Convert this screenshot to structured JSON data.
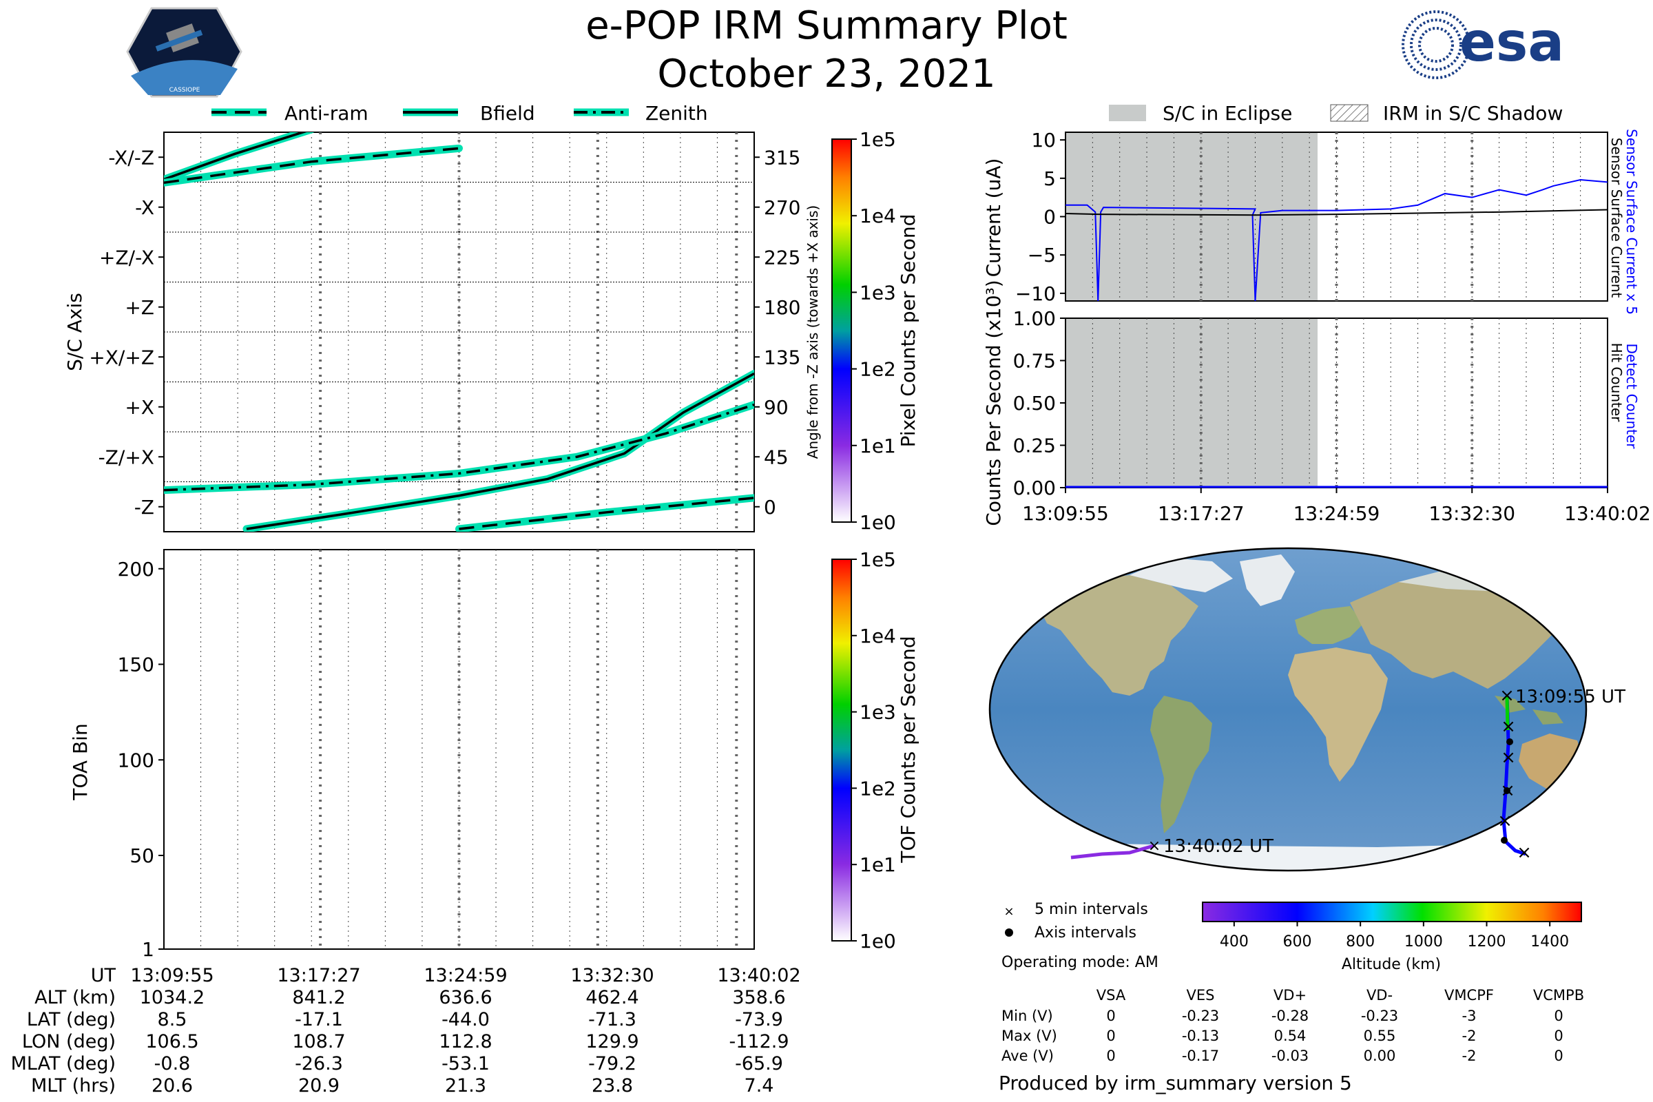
{
  "header": {
    "title": "e-POP IRM Summary Plot",
    "date": "October 23, 2021",
    "mission_logo_text": "CASSIOPE",
    "agency_logo_text": "esa"
  },
  "colors": {
    "teal": "#00e0b0",
    "eclipse_fill": "#c8cbca",
    "blue_series": "#0000ff",
    "black_series": "#000000"
  },
  "top_legend": [
    {
      "label": "Anti-ram",
      "style": "dashed"
    },
    {
      "label": "Bfield",
      "style": "solid"
    },
    {
      "label": "Zenith",
      "style": "dashdot"
    }
  ],
  "right_legend": [
    {
      "label": "S/C in Eclipse",
      "style": "gray-fill"
    },
    {
      "label": "IRM in S/C Shadow",
      "style": "hatch"
    }
  ],
  "time_ticks": [
    "13:09:55",
    "13:17:27",
    "13:24:59",
    "13:32:30",
    "13:40:02"
  ],
  "chart_data": [
    {
      "id": "sc_axis",
      "type": "line",
      "ylabel": "S/C Axis",
      "ylabel_right": "Angle from -Z axis (towards +X axis)",
      "y_tick_labels": [
        "-Z",
        "-Z/+X",
        "+X",
        "+X/+Z",
        "+Z",
        "+Z/-X",
        "-X",
        "-X/-Z"
      ],
      "y_tick_values": [
        0,
        45,
        90,
        135,
        180,
        225,
        270,
        315
      ],
      "ylim": [
        -22.5,
        337.5
      ],
      "x": [
        "13:09:55",
        "13:17:27",
        "13:24:59",
        "13:32:30",
        "13:40:02"
      ],
      "series": [
        {
          "name": "Bfield",
          "style": "solid",
          "segments": [
            [
              [
                0,
                295
              ],
              [
                0.12,
                318
              ],
              [
                0.25,
                340
              ]
            ],
            [
              [
                0.14,
                -20
              ],
              [
                0.3,
                -7
              ],
              [
                0.5,
                10
              ],
              [
                0.65,
                25
              ],
              [
                0.78,
                48
              ],
              [
                0.88,
                85
              ],
              [
                1.0,
                120
              ]
            ]
          ]
        },
        {
          "name": "Anti-ram",
          "style": "dashed",
          "segments": [
            [
              [
                0,
                292
              ],
              [
                0.25,
                311
              ],
              [
                0.5,
                323
              ]
            ],
            [
              [
                0.5,
                -20
              ],
              [
                0.75,
                -5
              ],
              [
                1.0,
                8
              ]
            ]
          ]
        },
        {
          "name": "Zenith",
          "style": "dashdot",
          "segments": [
            [
              [
                0,
                15
              ],
              [
                0.25,
                20
              ],
              [
                0.5,
                30
              ],
              [
                0.7,
                45
              ],
              [
                0.85,
                66
              ],
              [
                1.0,
                92
              ]
            ]
          ]
        }
      ],
      "colorbar": {
        "label": "Pixel Counts per Second",
        "ticks": [
          "1e0",
          "1e1",
          "1e2",
          "1e3",
          "1e4",
          "1e5"
        ]
      }
    },
    {
      "id": "current",
      "type": "line",
      "ylabel": "Current (uA)",
      "ylim": [
        -11,
        11
      ],
      "y_ticks": [
        10,
        5,
        0,
        -5,
        -10
      ],
      "x": [
        "13:09:55",
        "13:17:27",
        "13:24:59",
        "13:32:30",
        "13:40:02"
      ],
      "eclipse_fraction": [
        0,
        0.465
      ],
      "series": [
        {
          "name": "Sensor Surface Current x 5",
          "color": "#0000ff",
          "points": [
            [
              0,
              1.5
            ],
            [
              0.04,
              1.5
            ],
            [
              0.055,
              0.6
            ],
            [
              0.06,
              -11
            ],
            [
              0.065,
              0.6
            ],
            [
              0.07,
              1.2
            ],
            [
              0.35,
              1.0
            ],
            [
              0.345,
              0.2
            ],
            [
              0.35,
              -11
            ],
            [
              0.36,
              0.5
            ],
            [
              0.4,
              0.8
            ],
            [
              0.5,
              0.8
            ],
            [
              0.6,
              1.0
            ],
            [
              0.65,
              1.5
            ],
            [
              0.7,
              3
            ],
            [
              0.75,
              2.5
            ],
            [
              0.8,
              3.5
            ],
            [
              0.85,
              2.8
            ],
            [
              0.88,
              3.5
            ],
            [
              0.9,
              4
            ],
            [
              0.95,
              4.8
            ],
            [
              1.0,
              4.5
            ]
          ]
        },
        {
          "name": "Sensor Surface Current",
          "color": "#000000",
          "points": [
            [
              0,
              0.4
            ],
            [
              0.06,
              0.3
            ],
            [
              0.35,
              0.2
            ],
            [
              0.5,
              0.3
            ],
            [
              0.8,
              0.6
            ],
            [
              1.0,
              0.9
            ]
          ]
        }
      ]
    },
    {
      "id": "counts",
      "type": "line",
      "ylabel": "Counts Per Second (x10³)",
      "ylim": [
        0,
        1
      ],
      "y_ticks": [
        "0.00",
        "0.25",
        "0.50",
        "0.75",
        "1.00"
      ],
      "x": [
        "13:09:55",
        "13:17:27",
        "13:24:59",
        "13:32:30",
        "13:40:02"
      ],
      "eclipse_fraction": [
        0,
        0.465
      ],
      "series": [
        {
          "name": "Detect Counter",
          "color": "#0000ff",
          "values": [
            0,
            0,
            0,
            0,
            0
          ]
        },
        {
          "name": "Hit Counter",
          "color": "#000000",
          "values": [
            0,
            0,
            0,
            0,
            0
          ]
        }
      ]
    },
    {
      "id": "toa",
      "type": "heatmap",
      "ylabel": "TOA Bin",
      "ylim": [
        1,
        210
      ],
      "y_ticks": [
        "200",
        "150",
        "100",
        "50",
        "1"
      ],
      "x": [
        "13:09:55",
        "13:17:27",
        "13:24:59",
        "13:32:30",
        "13:40:02"
      ],
      "colorbar": {
        "label": "TOF Counts per Second",
        "ticks": [
          "1e0",
          "1e1",
          "1e2",
          "1e3",
          "1e4",
          "1e5"
        ]
      }
    },
    {
      "id": "map",
      "type": "map",
      "track_labels": [
        "13:09:55 UT",
        "13:40:02 UT"
      ],
      "legend": [
        "5 min intervals",
        "Axis intervals"
      ],
      "colorbar": {
        "label": "Altitude (km)",
        "ticks": [
          "400",
          "600",
          "800",
          "1000",
          "1200",
          "1400"
        ],
        "range": [
          300,
          1500
        ]
      }
    }
  ],
  "ephemeris": {
    "rows": [
      {
        "label": "UT",
        "values": [
          "13:09:55",
          "13:17:27",
          "13:24:59",
          "13:32:30",
          "13:40:02"
        ]
      },
      {
        "label": "ALT (km)",
        "values": [
          "1034.2",
          "841.2",
          "636.6",
          "462.4",
          "358.6"
        ]
      },
      {
        "label": "LAT (deg)",
        "values": [
          "8.5",
          "-17.1",
          "-44.0",
          "-71.3",
          "-73.9"
        ]
      },
      {
        "label": "LON (deg)",
        "values": [
          "106.5",
          "108.7",
          "112.8",
          "129.9",
          "-112.9"
        ]
      },
      {
        "label": "MLAT (deg)",
        "values": [
          "-0.8",
          "-26.3",
          "-53.1",
          "-79.2",
          "-65.9"
        ]
      },
      {
        "label": "MLT (hrs)",
        "values": [
          "20.6",
          "20.9",
          "21.3",
          "23.8",
          "7.4"
        ]
      }
    ]
  },
  "operating_mode": "Operating mode: AM",
  "voltage_table": {
    "columns": [
      "VSA",
      "VES",
      "VD+",
      "VD-",
      "VMCPF",
      "VCMPB"
    ],
    "rows": [
      {
        "label": "Min (V)",
        "values": [
          "0",
          "-0.23",
          "-0.28",
          "-0.23",
          "-3",
          "0"
        ]
      },
      {
        "label": "Max (V)",
        "values": [
          "0",
          "-0.13",
          "0.54",
          "0.55",
          "-2",
          "0"
        ]
      },
      {
        "label": "Ave (V)",
        "values": [
          "0",
          "-0.17",
          "-0.03",
          "0.00",
          "-2",
          "0"
        ]
      }
    ]
  },
  "footer": "Produced by irm_summary version 5"
}
